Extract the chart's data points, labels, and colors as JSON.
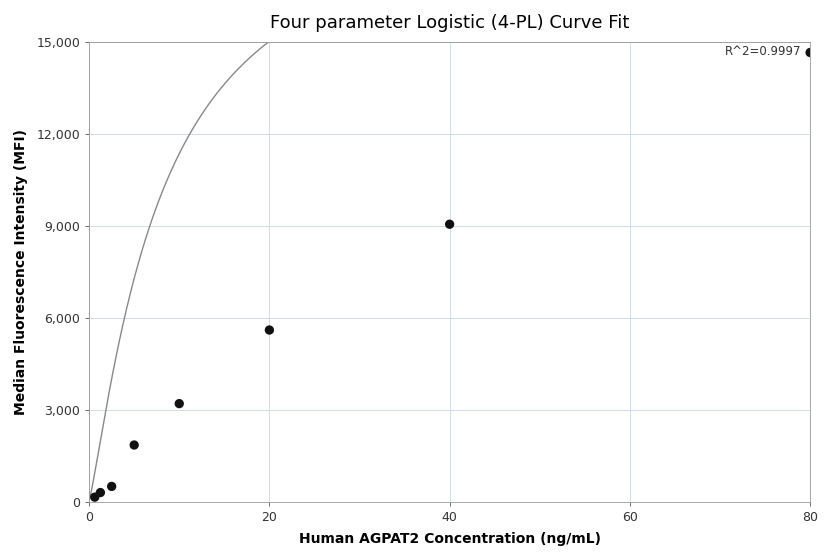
{
  "title": "Four parameter Logistic (4-PL) Curve Fit",
  "xlabel": "Human AGPAT2 Concentration (ng/mL)",
  "ylabel": "Median Fluorescence Intensity (MFI)",
  "r_squared": "R^2=0.9997",
  "x_data": [
    0.625,
    1.25,
    2.5,
    5.0,
    10.0,
    20.0,
    40.0,
    80.0
  ],
  "y_data": [
    150,
    300,
    500,
    1850,
    3200,
    5600,
    9050,
    14650
  ],
  "xlim": [
    0,
    80
  ],
  "ylim": [
    0,
    15000
  ],
  "yticks": [
    0,
    3000,
    6000,
    9000,
    12000,
    15000
  ],
  "xticks": [
    0,
    20,
    40,
    60,
    80
  ],
  "background_color": "#ffffff",
  "grid_color": "#d0daea",
  "line_color": "#888888",
  "dot_color": "#111111",
  "dot_size": 45,
  "title_fontsize": 13,
  "label_fontsize": 10,
  "tick_fontsize": 9,
  "annotation_fontsize": 8.5
}
